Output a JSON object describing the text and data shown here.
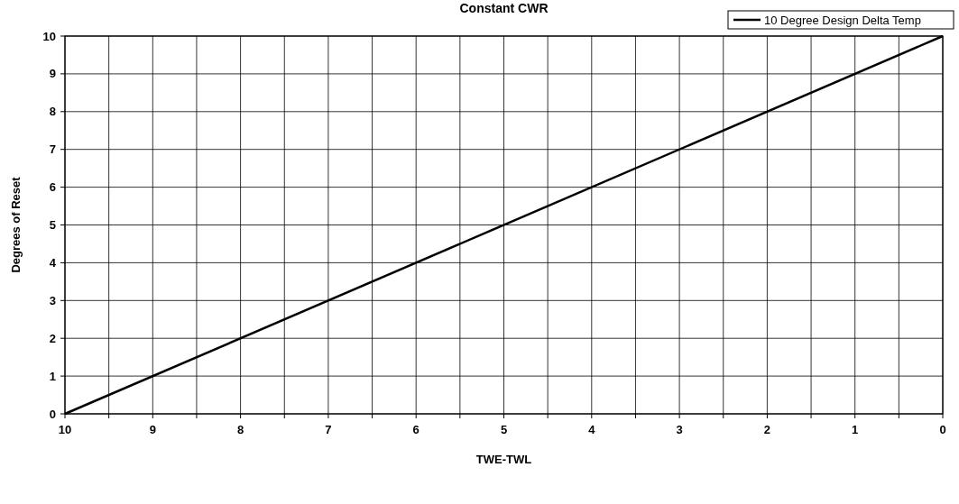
{
  "chart_data": {
    "type": "line",
    "title": "Constant CWR",
    "xlabel": "TWE-TWL",
    "ylabel": "Degrees of Reset",
    "x": [
      10,
      0
    ],
    "series": [
      {
        "name": "10 Degree Design Delta Temp",
        "color": "#000000",
        "values": [
          0,
          10
        ]
      }
    ],
    "xlim": [
      10,
      0
    ],
    "xticks": [
      10,
      {
        "value": 9.5,
        "label": null
      },
      9,
      {
        "value": 8.5,
        "label": null
      },
      8,
      {
        "value": 7.5,
        "label": null
      },
      7,
      {
        "value": 6.5,
        "label": null
      },
      6,
      {
        "value": 5.5,
        "label": null
      },
      5,
      {
        "value": 4.5,
        "label": null
      },
      4,
      {
        "value": 3.5,
        "label": null
      },
      3,
      {
        "value": 2.5,
        "label": null
      },
      2,
      {
        "value": 1.5,
        "label": null
      },
      1,
      {
        "value": 0.5,
        "label": null
      },
      0
    ],
    "ylim": [
      0,
      10
    ],
    "yticks": [
      0,
      1,
      2,
      3,
      4,
      5,
      6,
      7,
      8,
      9,
      10
    ],
    "grid": true,
    "legend": "top right",
    "marker": "none",
    "line_style": "solid"
  }
}
